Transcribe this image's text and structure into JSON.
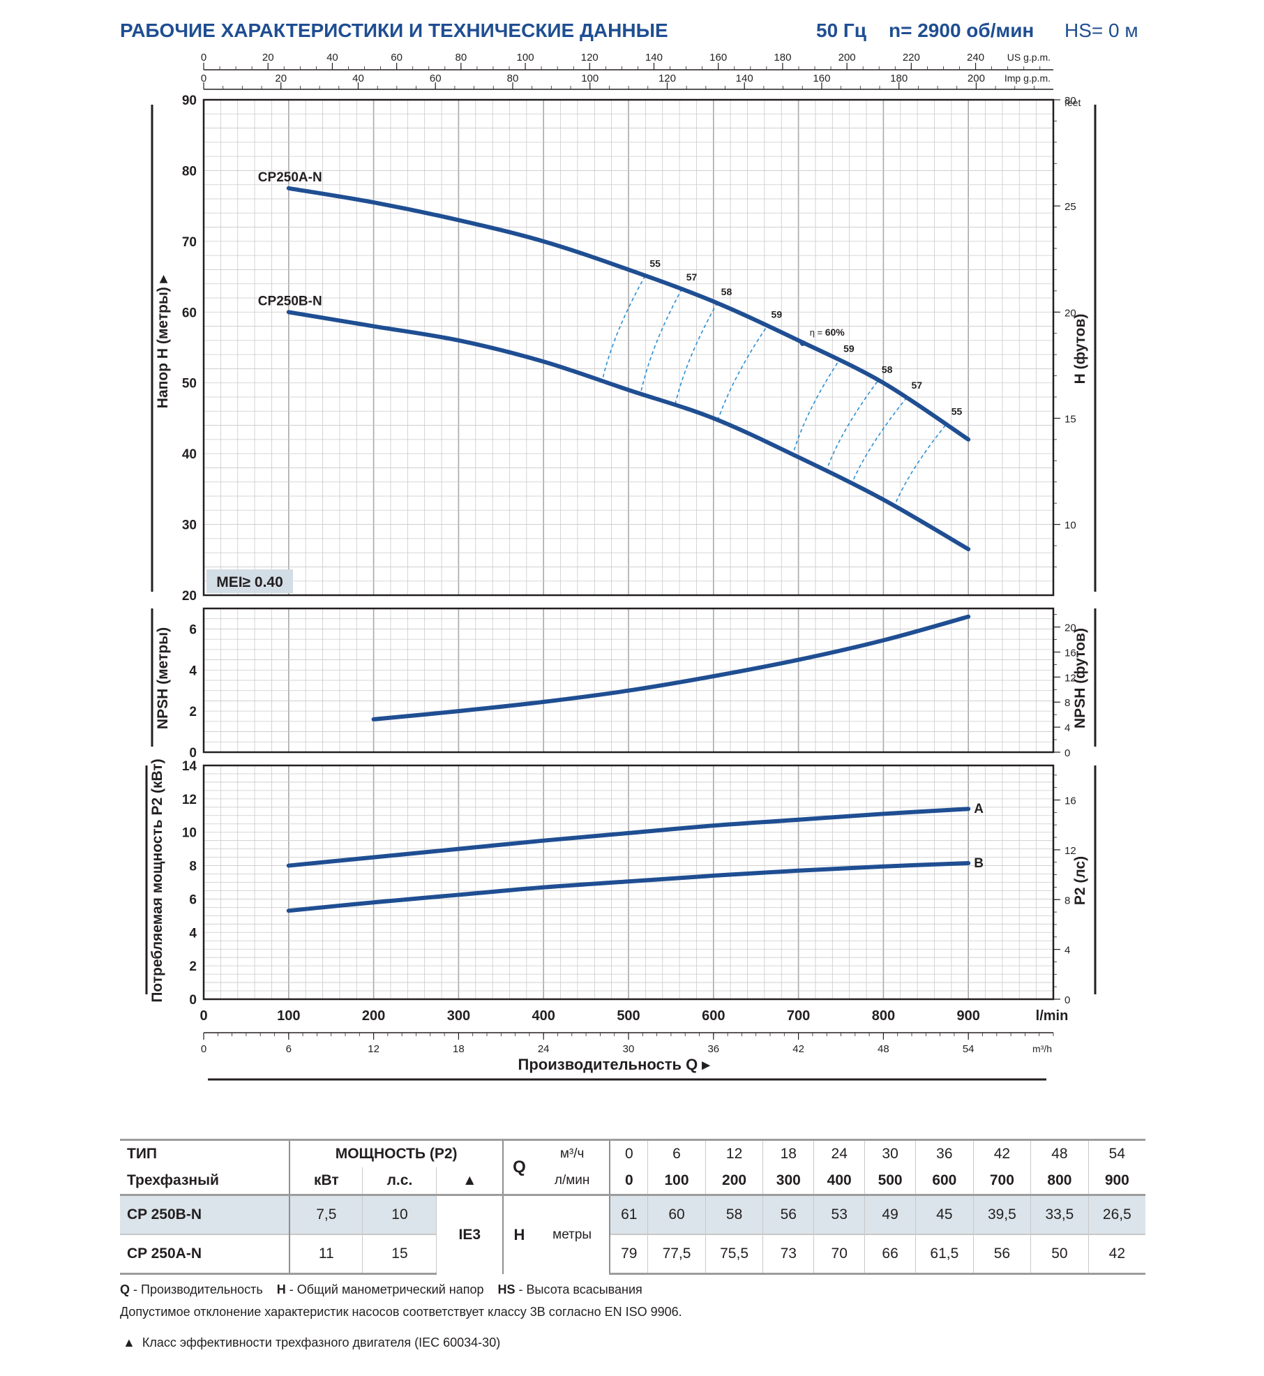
{
  "header": {
    "title": "РАБОЧИЕ ХАРАКТЕРИСТИКИ И ТЕХНИЧЕСКИЕ ДАННЫЕ",
    "frequency": "50 Гц",
    "speed": "n= 2900 об/мин",
    "suction": "HS= 0 м"
  },
  "colors": {
    "curve": "#1f4e92",
    "efficiency": "#2a8fd4",
    "title": "#1f4e92",
    "grid": "#c9c9c9",
    "badge_bg": "#d3dde5"
  },
  "chart_data": [
    {
      "type": "line",
      "name": "head",
      "ylabel": "Напор H (метры)",
      "ylabel_right": "H (футов)",
      "y_right_unit": "feet",
      "ylim": [
        20,
        90
      ],
      "yticks": [
        20,
        30,
        40,
        50,
        60,
        70,
        80,
        90
      ],
      "y_right_ticks": [
        10,
        15,
        20,
        25,
        30
      ],
      "xlim": [
        0,
        1000
      ],
      "top_axes": [
        {
          "unit": "US g.p.m.",
          "ticks": [
            0,
            20,
            40,
            60,
            80,
            100,
            120,
            140,
            160,
            180,
            200,
            220,
            240
          ]
        },
        {
          "unit": "Imp g.p.m.",
          "ticks": [
            0,
            20,
            40,
            60,
            80,
            100,
            120,
            140,
            160,
            180,
            200
          ]
        }
      ],
      "badge": "MEI≥ 0.40",
      "x": [
        100,
        200,
        300,
        400,
        500,
        600,
        700,
        800,
        900
      ],
      "series": [
        {
          "name": "CP250A-N",
          "values": [
            77.5,
            75.5,
            73,
            70,
            66,
            61.5,
            56,
            50,
            42
          ]
        },
        {
          "name": "CP250B-N",
          "values": [
            60,
            58,
            56,
            53,
            49,
            45,
            39.5,
            33.5,
            26.5
          ]
        }
      ],
      "efficiency": [
        {
          "label": "55",
          "a": [
            520,
            65.2
          ],
          "b": [
            470,
            50.8
          ]
        },
        {
          "label": "57",
          "a": [
            563,
            63.3
          ],
          "b": [
            515,
            48.9
          ]
        },
        {
          "label": "58",
          "a": [
            604,
            61.2
          ],
          "b": [
            555,
            47
          ]
        },
        {
          "label": "59",
          "a": [
            663,
            58
          ],
          "b": [
            605,
            44.7
          ]
        },
        {
          "label": "59",
          "a": [
            748,
            53.2
          ],
          "b": [
            695,
            40.5
          ]
        },
        {
          "label": "58",
          "a": [
            793,
            50.2
          ],
          "b": [
            735,
            38.3
          ]
        },
        {
          "label": "57",
          "a": [
            828,
            48
          ],
          "b": [
            765,
            36.4
          ]
        },
        {
          "label": "55",
          "a": [
            875,
            44.3
          ],
          "b": [
            815,
            33.2
          ]
        }
      ],
      "best": {
        "label_prefix": "η = ",
        "label_value": "60%",
        "x": 705,
        "y": 55.6
      }
    },
    {
      "type": "line",
      "name": "npsh",
      "ylabel": "NPSH (метры)",
      "ylabel_right": "NPSH (футов)",
      "ylim": [
        0,
        7
      ],
      "yticks": [
        0,
        2,
        4,
        6
      ],
      "y_right_ticks": [
        0,
        4,
        8,
        12,
        16,
        20
      ],
      "x": [
        200,
        300,
        400,
        500,
        600,
        700,
        800,
        900
      ],
      "values": [
        1.6,
        2.0,
        2.45,
        3.0,
        3.7,
        4.5,
        5.45,
        6.6
      ]
    },
    {
      "type": "line",
      "name": "power",
      "ylabel": "Потребляемая мощность P2 (кВт)",
      "ylabel_right": "P2 (лс)",
      "ylim": [
        0,
        14
      ],
      "yticks": [
        0,
        2,
        4,
        6,
        8,
        10,
        12,
        14
      ],
      "y_right_ticks": [
        0,
        4,
        8,
        12,
        16
      ],
      "x": [
        100,
        200,
        300,
        400,
        500,
        600,
        700,
        800,
        900
      ],
      "series": [
        {
          "name": "A",
          "values": [
            8.0,
            8.5,
            9.0,
            9.5,
            9.95,
            10.4,
            10.75,
            11.1,
            11.4
          ]
        },
        {
          "name": "B",
          "values": [
            5.3,
            5.8,
            6.25,
            6.7,
            7.05,
            7.4,
            7.7,
            7.95,
            8.15
          ]
        }
      ],
      "xlabel": "Производительность Q",
      "x_unit": "l/min",
      "xticks": [
        0,
        100,
        200,
        300,
        400,
        500,
        600,
        700,
        800,
        900
      ],
      "bottom_axis": {
        "unit": "m³/h",
        "ticks": [
          0,
          6,
          12,
          18,
          24,
          30,
          36,
          42,
          48,
          54
        ]
      }
    }
  ],
  "table": {
    "type_label": "ТИП",
    "phase_label": "Трехфазный",
    "power_label": "МОЩНОСТЬ (P2)",
    "kw_label": "кВт",
    "hp_label": "л.с.",
    "ie_marker": "▲",
    "q_label": "Q",
    "q_unit_m3": "м³/ч",
    "q_unit_lmin": "л/мин",
    "q_m3": [
      "0",
      "6",
      "12",
      "18",
      "24",
      "30",
      "36",
      "42",
      "48",
      "54"
    ],
    "q_lmin": [
      "0",
      "100",
      "200",
      "300",
      "400",
      "500",
      "600",
      "700",
      "800",
      "900"
    ],
    "ie_class": "IE3",
    "h_label": "H",
    "h_unit": "метры",
    "rows": [
      {
        "model": "CP 250B-N",
        "kw": "7,5",
        "hp": "10",
        "h": [
          "61",
          "60",
          "58",
          "56",
          "53",
          "49",
          "45",
          "39,5",
          "33,5",
          "26,5"
        ]
      },
      {
        "model": "CP 250A-N",
        "kw": "11",
        "hp": "15",
        "h": [
          "79",
          "77,5",
          "75,5",
          "73",
          "70",
          "66",
          "61,5",
          "56",
          "50",
          "42"
        ]
      }
    ]
  },
  "notes": {
    "q_key": "Q",
    "q_text": " - Производительность",
    "h_key": "H",
    "h_text": " - Общий манометрический напор",
    "hs_key": "HS",
    "hs_text": " - Высота всасывания",
    "tolerance": "Допустимое отклонение характеристик насосов соответствует классу 3B согласно EN ISO 9906.",
    "ie_marker": "▲",
    "ie_text": "Класс эффективности трехфазного двигателя (IEC 60034-30)"
  }
}
